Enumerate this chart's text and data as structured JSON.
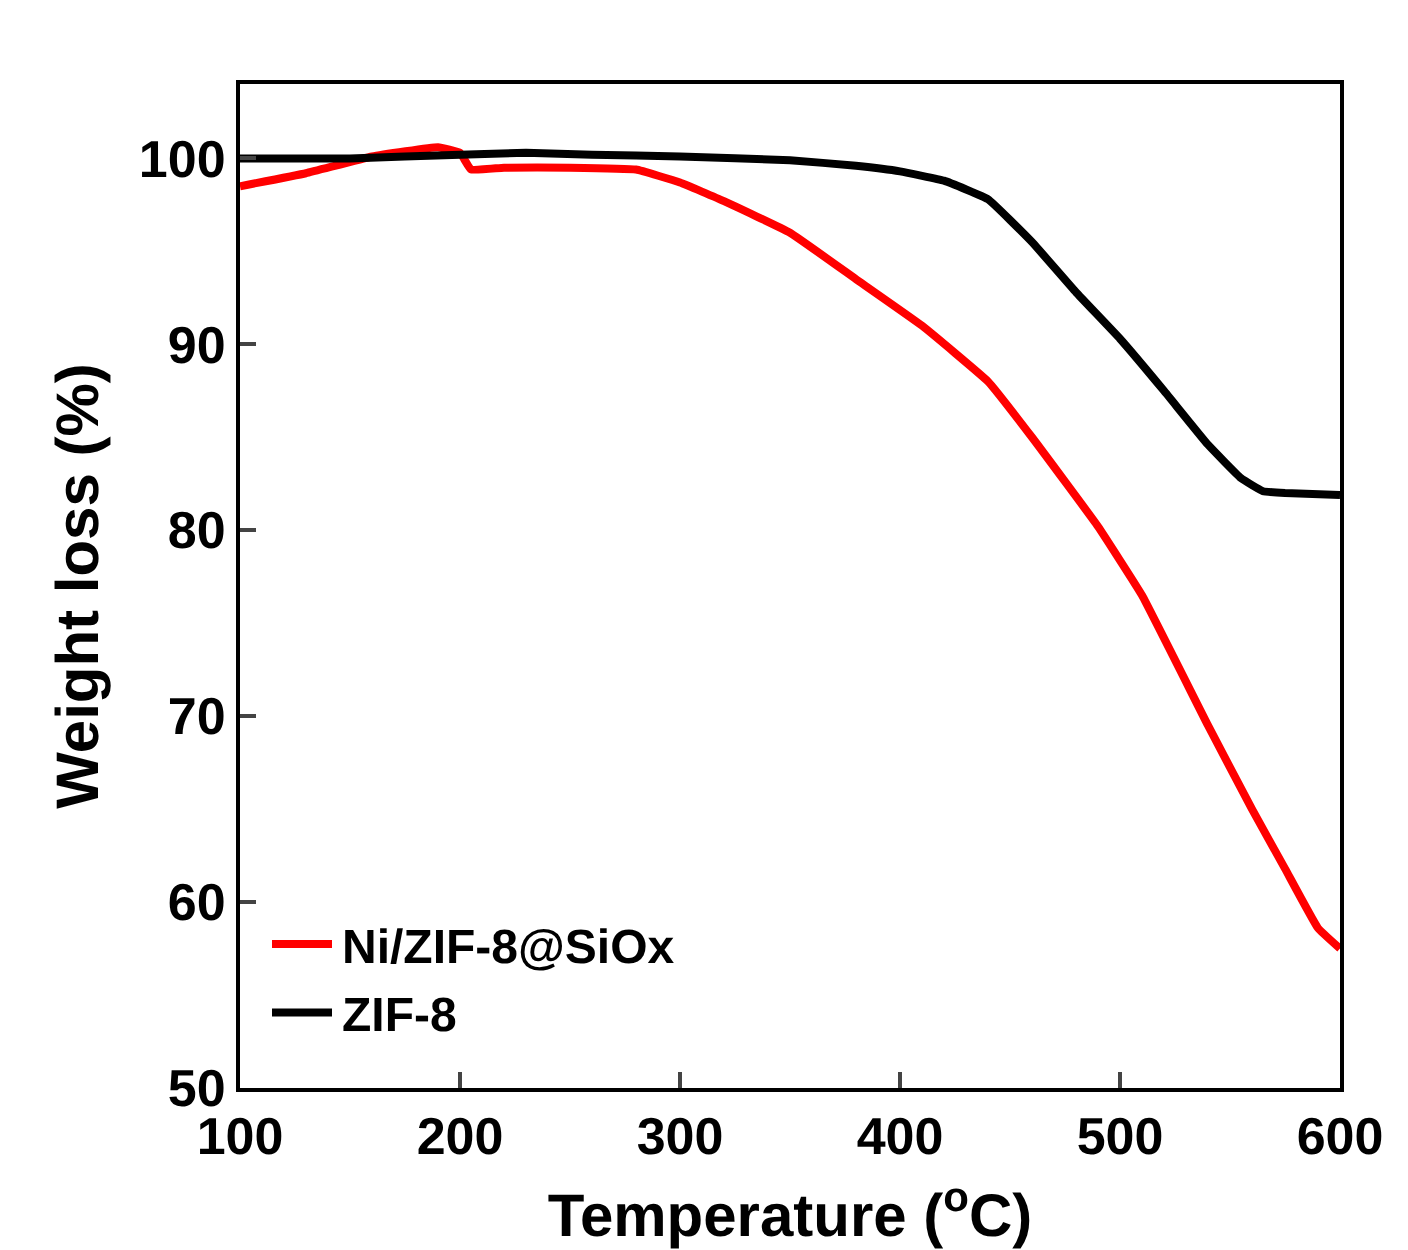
{
  "chart_data": {
    "type": "line",
    "xlabel": "Temperature ($^{o}$C)",
    "ylabel": "Weight loss (%)",
    "xlim": [
      100,
      600
    ],
    "xticks": [
      100,
      200,
      300,
      400,
      500,
      600
    ],
    "ylim": [
      50,
      104
    ],
    "yticks": [
      50,
      60,
      70,
      80,
      90,
      100
    ],
    "legend": "bottom left",
    "grid": false,
    "series": [
      {
        "name": "Ni/ZIF-8@SiOx",
        "color": "#ff0000",
        "x": [
          100,
          130,
          160,
          190,
          200,
          205,
          220,
          250,
          280,
          300,
          320,
          350,
          380,
          410,
          440,
          460,
          490,
          510,
          540,
          560,
          575,
          590,
          600
        ],
        "values": [
          98.5,
          99.2,
          100.1,
          100.6,
          100.3,
          99.4,
          99.5,
          99.5,
          99.4,
          98.7,
          97.7,
          96,
          93.5,
          91,
          88,
          85,
          80.2,
          76.5,
          69.5,
          65,
          61.8,
          58.6,
          57.5
        ]
      },
      {
        "name": "ZIF-8",
        "color": "#000000",
        "x": [
          100,
          150,
          200,
          230,
          260,
          300,
          350,
          380,
          400,
          420,
          440,
          460,
          480,
          500,
          520,
          540,
          555,
          565,
          575,
          600
        ],
        "values": [
          100,
          100,
          100.2,
          100.3,
          100.2,
          100.1,
          99.9,
          99.6,
          99.3,
          98.8,
          97.8,
          95.5,
          92.8,
          90.3,
          87.5,
          84.6,
          82.8,
          82.1,
          82,
          81.9
        ]
      }
    ]
  }
}
